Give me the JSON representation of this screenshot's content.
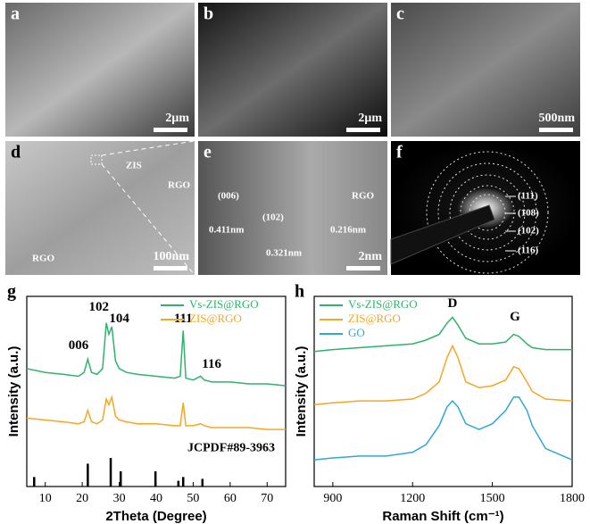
{
  "panels": [
    {
      "letter": "a",
      "scale_bar": "2μm"
    },
    {
      "letter": "b",
      "scale_bar": "2μm"
    },
    {
      "letter": "c",
      "scale_bar": "500nm"
    },
    {
      "letter": "d",
      "scale_bar": "100nm",
      "annotations": [
        "ZIS",
        "RGO",
        "RGO"
      ]
    },
    {
      "letter": "e",
      "scale_bar": "2nm",
      "annotations": [
        "(006)",
        "0.411nm",
        "(102)",
        "0.321nm",
        "RGO",
        "0.216nm"
      ]
    },
    {
      "letter": "f",
      "annotations": [
        "(111)",
        "(108)",
        "(102)",
        "(116)"
      ]
    }
  ],
  "chart_data": [
    {
      "type": "line",
      "label": "g",
      "x_label": "2Theta (Degree)",
      "y_label": "Intensity (a.u.)",
      "xlim": [
        5,
        75
      ],
      "xticks": [
        10,
        20,
        30,
        40,
        50,
        60,
        70
      ],
      "ylim": [
        0,
        100
      ],
      "legend": "upper right",
      "peak_labels": [
        "006",
        "102",
        "104",
        "111",
        "116"
      ],
      "x": [
        5,
        10,
        15,
        19,
        20.5,
        21.5,
        22.5,
        24,
        25.5,
        26.5,
        27.2,
        28,
        29,
        30,
        32,
        35,
        40,
        45,
        46.5,
        47.3,
        48,
        50,
        52,
        53,
        55,
        60,
        65,
        70,
        75
      ],
      "series": [
        {
          "name": "Vs-ZIS@RGO",
          "color": "#2fb36b",
          "values": [
            62,
            60,
            59,
            58,
            60,
            67,
            60,
            59,
            62,
            86,
            80,
            84,
            66,
            62,
            60,
            59,
            58,
            57,
            58,
            82,
            57,
            56,
            58,
            56,
            55,
            55,
            54,
            54,
            53
          ]
        },
        {
          "name": "ZIS@RGO",
          "color": "#f5a623",
          "values": [
            36,
            35,
            34,
            33,
            34,
            40,
            34,
            33,
            35,
            46,
            43,
            47,
            37,
            35,
            34,
            33,
            33,
            32,
            32,
            44,
            32,
            32,
            33,
            32,
            31,
            31,
            31,
            30,
            30
          ]
        }
      ],
      "reference": {
        "name": "JCPDF#89-3963",
        "color": "#000000",
        "x": [
          7,
          21.5,
          27.7,
          30.4,
          39.8,
          46,
          47.3,
          52.5
        ],
        "values": [
          5,
          12,
          15,
          8,
          8,
          3,
          5,
          4
        ]
      }
    },
    {
      "type": "line",
      "label": "h",
      "x_label": "Raman Shift (cm⁻¹)",
      "y_label": "Intensity (a.u.)",
      "xlim": [
        830,
        1800
      ],
      "xticks": [
        900,
        1200,
        1500,
        1800
      ],
      "ylim": [
        0,
        100
      ],
      "legend": "upper left",
      "peak_labels": [
        "D",
        "G"
      ],
      "x": [
        830,
        900,
        1000,
        1100,
        1200,
        1250,
        1300,
        1330,
        1350,
        1370,
        1400,
        1450,
        1500,
        1550,
        1580,
        1600,
        1630,
        1650,
        1700,
        1800
      ],
      "series": [
        {
          "name": "Vs-ZIS@RGO",
          "color": "#2fb36b",
          "values": [
            71,
            72,
            73,
            74,
            75,
            77,
            80,
            86,
            89,
            85,
            78,
            75,
            75,
            76,
            80,
            79,
            75,
            73,
            72,
            72
          ]
        },
        {
          "name": "ZIS@RGO",
          "color": "#f5a623",
          "values": [
            43,
            44,
            45,
            45,
            46,
            49,
            55,
            68,
            74,
            68,
            55,
            52,
            53,
            56,
            63,
            62,
            55,
            50,
            46,
            45
          ]
        },
        {
          "name": "GO",
          "color": "#2ea8d8",
          "values": [
            14,
            15,
            16,
            16,
            18,
            22,
            32,
            42,
            45,
            42,
            33,
            30,
            33,
            40,
            47,
            47,
            40,
            32,
            20,
            14
          ]
        }
      ]
    }
  ]
}
